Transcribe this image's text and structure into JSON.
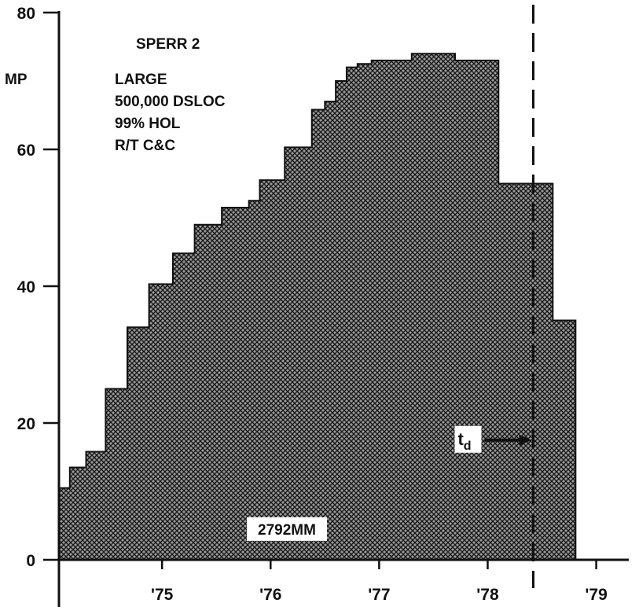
{
  "chart_data": {
    "type": "area",
    "step": true,
    "ylabel": "MP",
    "ylim": [
      0,
      80
    ],
    "yticks": [
      0,
      20,
      40,
      60,
      80
    ],
    "xlim": [
      1974.05,
      1979.3
    ],
    "xticks": [
      {
        "value": 1975,
        "label": "'75"
      },
      {
        "value": 1976,
        "label": "'76"
      },
      {
        "value": 1977,
        "label": "'77"
      },
      {
        "value": 1978,
        "label": "'78"
      },
      {
        "value": 1979,
        "label": "'79"
      }
    ],
    "series": [
      {
        "fill": "cross-hatch",
        "steps": [
          {
            "x0": 1974.05,
            "x1": 1974.15,
            "y": 10.5
          },
          {
            "x0": 1974.15,
            "x1": 1974.3,
            "y": 13.5
          },
          {
            "x0": 1974.3,
            "x1": 1974.48,
            "y": 15.8
          },
          {
            "x0": 1974.48,
            "x1": 1974.68,
            "y": 25
          },
          {
            "x0": 1974.68,
            "x1": 1974.88,
            "y": 34
          },
          {
            "x0": 1974.88,
            "x1": 1975.1,
            "y": 40.3
          },
          {
            "x0": 1975.1,
            "x1": 1975.3,
            "y": 44.8
          },
          {
            "x0": 1975.3,
            "x1": 1975.55,
            "y": 49
          },
          {
            "x0": 1975.55,
            "x1": 1975.8,
            "y": 51.5
          },
          {
            "x0": 1975.8,
            "x1": 1975.9,
            "y": 52.5
          },
          {
            "x0": 1975.9,
            "x1": 1976.13,
            "y": 55.5
          },
          {
            "x0": 1976.13,
            "x1": 1976.38,
            "y": 60.3
          },
          {
            "x0": 1976.38,
            "x1": 1976.5,
            "y": 65.8
          },
          {
            "x0": 1976.5,
            "x1": 1976.6,
            "y": 67
          },
          {
            "x0": 1976.6,
            "x1": 1976.7,
            "y": 70
          },
          {
            "x0": 1976.7,
            "x1": 1976.8,
            "y": 72
          },
          {
            "x0": 1976.8,
            "x1": 1976.93,
            "y": 72.5
          },
          {
            "x0": 1976.93,
            "x1": 1977.3,
            "y": 73
          },
          {
            "x0": 1977.3,
            "x1": 1977.7,
            "y": 74
          },
          {
            "x0": 1977.7,
            "x1": 1978.1,
            "y": 73
          },
          {
            "x0": 1978.1,
            "x1": 1978.42,
            "y": 55
          },
          {
            "x0": 1978.42,
            "x1": 1978.6,
            "y": 55
          },
          {
            "x0": 1978.6,
            "x1": 1978.81,
            "y": 35
          }
        ]
      }
    ],
    "annotations": {
      "project_lines": [
        "SPERR 2",
        "LARGE",
        "500,000 DSLOC",
        "99% HOL",
        "R/T C&C"
      ],
      "total_effort": "2792MM",
      "td_main": "t",
      "td_sub": "d",
      "td_x": 1978.42,
      "td_y": 17.5,
      "total_effort_x": 1976.15,
      "total_effort_y": 4.5
    }
  }
}
